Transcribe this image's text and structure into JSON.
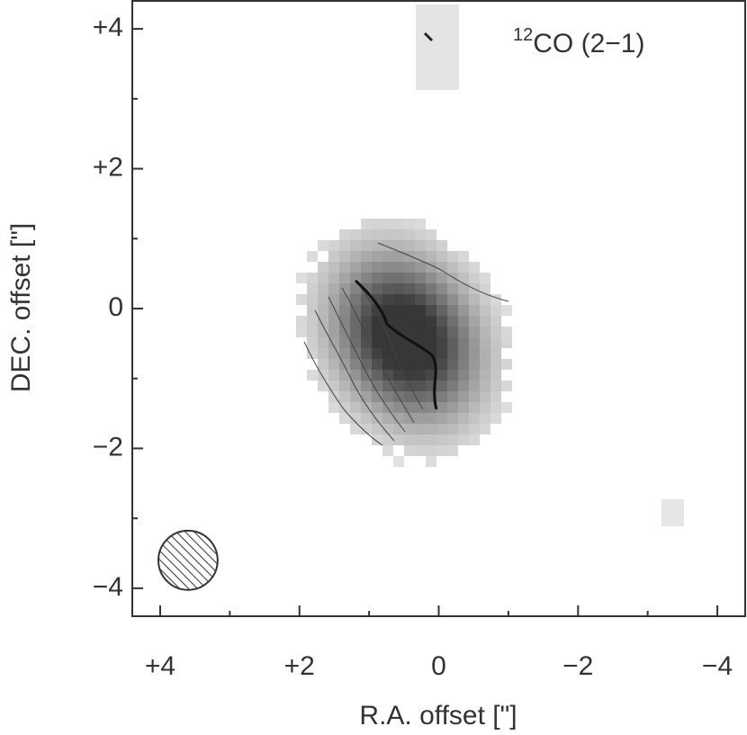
{
  "chart_data": {
    "type": "image",
    "xlabel": "R.A. offset [\"]",
    "ylabel": "DEC. offset [\"]",
    "annotation": {
      "superscript": "12",
      "text": "CO (2−1)"
    },
    "xlim": [
      4.4,
      -4.4
    ],
    "ylim": [
      -4.4,
      4.4
    ],
    "xticks": [
      {
        "value": 4,
        "label": "+4"
      },
      {
        "value": 2,
        "label": "+2"
      },
      0,
      {
        "value": -2,
        "label": "−2"
      },
      {
        "value": -4,
        "label": "−4"
      }
    ],
    "yticks": [
      {
        "value": 4,
        "label": "+4"
      },
      {
        "value": 2,
        "label": "+2"
      },
      0,
      {
        "value": -2,
        "label": "−2"
      },
      {
        "value": -4,
        "label": "−4"
      }
    ],
    "minor_xticks": [
      3,
      1,
      -1,
      -3
    ],
    "minor_yticks": [
      3,
      1,
      -1,
      -3
    ],
    "beam": {
      "x": 3.6,
      "y": -3.6,
      "diameter": 0.85
    }
  }
}
